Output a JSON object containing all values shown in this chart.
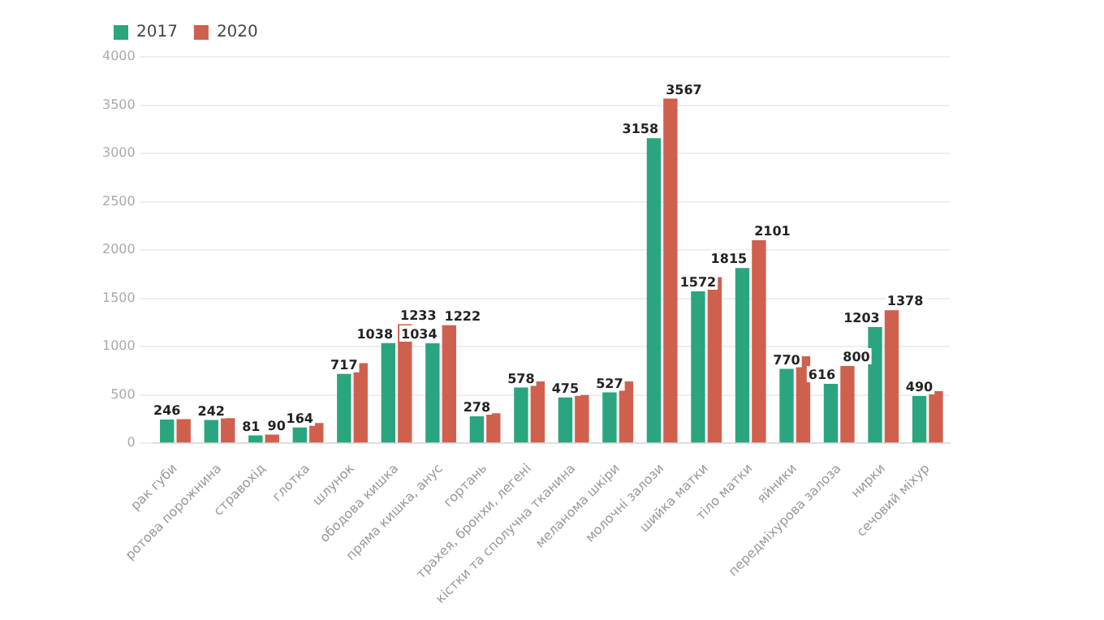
{
  "chart_data": {
    "type": "bar",
    "categories": [
      "рак губи",
      "ротова порожнина",
      "стравохід",
      "глотка",
      "шлунок",
      "ободова кишка",
      "пряма кишка, анус",
      "гортань",
      "трахея, бронхи, легені",
      "кістки та сполучна тканина",
      "меланома шкіри",
      "молочні залози",
      "шийка матки",
      "тіло матки",
      "яйники",
      "передміхурова залоза",
      "нирки",
      "сечовий міхур"
    ],
    "series": [
      {
        "name": "2017",
        "color": "#2aa57f",
        "values": [
          246,
          242,
          81,
          164,
          717,
          1038,
          1034,
          278,
          578,
          475,
          527,
          3158,
          1572,
          1815,
          770,
          616,
          1203,
          490
        ],
        "value_labels": [
          "246",
          "242",
          "81",
          "164",
          "717",
          "1038",
          "1034",
          "278",
          "578",
          "475",
          "527",
          "3158",
          "1572",
          "1815",
          "770",
          "616",
          "1203",
          "490"
        ]
      },
      {
        "name": "2020",
        "color": "#d0604e",
        "values": [
          250,
          260,
          90,
          210,
          830,
          1233,
          1222,
          310,
          640,
          500,
          640,
          3567,
          1720,
          2101,
          900,
          800,
          1378,
          540
        ],
        "value_labels": [
          null,
          null,
          "90",
          null,
          null,
          "1233",
          "1222",
          null,
          null,
          null,
          null,
          "3567",
          null,
          "2101",
          null,
          "800",
          "1378",
          null
        ]
      }
    ],
    "ylim": [
      0,
      4000
    ],
    "yticks": [
      0,
      500,
      1000,
      1500,
      2000,
      2500,
      3000,
      3500,
      4000
    ],
    "grid": "y",
    "legend": "top left"
  }
}
